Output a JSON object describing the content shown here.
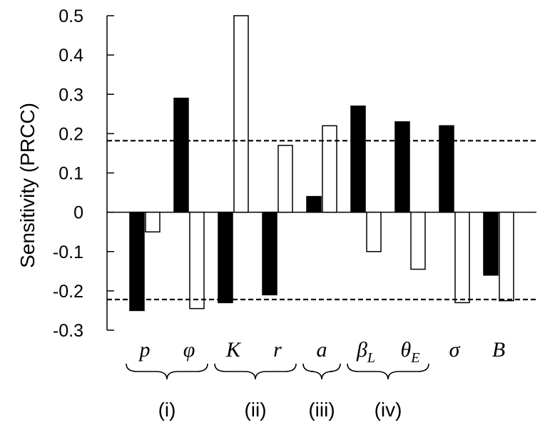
{
  "chart_data": {
    "type": "bar",
    "title": "",
    "xlabel": "",
    "ylabel": "Sensitivity (PRCC)",
    "ylim": [
      -0.3,
      0.5
    ],
    "yticks": [
      {
        "value": 0.5,
        "label": "0.5"
      },
      {
        "value": 0.4,
        "label": "0.4"
      },
      {
        "value": 0.3,
        "label": "0.3"
      },
      {
        "value": 0.2,
        "label": "0.2"
      },
      {
        "value": 0.1,
        "label": "0.1"
      },
      {
        "value": 0,
        "label": "0"
      },
      {
        "value": -0.1,
        "label": "-0.1"
      },
      {
        "value": -0.2,
        "label": "-0.2"
      },
      {
        "value": -0.3,
        "label": "-0.3"
      }
    ],
    "categories": [
      {
        "base": "p",
        "sub": ""
      },
      {
        "base": "φ",
        "sub": ""
      },
      {
        "base": "K",
        "sub": ""
      },
      {
        "base": "r",
        "sub": ""
      },
      {
        "base": "a",
        "sub": ""
      },
      {
        "base": "β",
        "sub": "L"
      },
      {
        "base": "θ",
        "sub": "E"
      },
      {
        "base": "σ",
        "sub": ""
      },
      {
        "base": "B",
        "sub": ""
      }
    ],
    "series": [
      {
        "fill": "#000000",
        "values": [
          -0.25,
          0.29,
          -0.23,
          -0.21,
          0.04,
          0.27,
          0.23,
          0.22,
          -0.16
        ]
      },
      {
        "fill": "#ffffff",
        "values": [
          -0.05,
          -0.245,
          0.5,
          0.17,
          0.22,
          -0.1,
          -0.145,
          -0.23,
          -0.225
        ]
      }
    ],
    "reference_lines": [
      0.182,
      -0.222
    ],
    "groups": [
      {
        "label": "(i)",
        "from": 0,
        "to": 1
      },
      {
        "label": "(ii)",
        "from": 2,
        "to": 3
      },
      {
        "label": "(iii)",
        "from": 4,
        "to": 4
      },
      {
        "label": "(iv)",
        "from": 5,
        "to": 6
      }
    ],
    "grid": false,
    "legend": "none"
  }
}
